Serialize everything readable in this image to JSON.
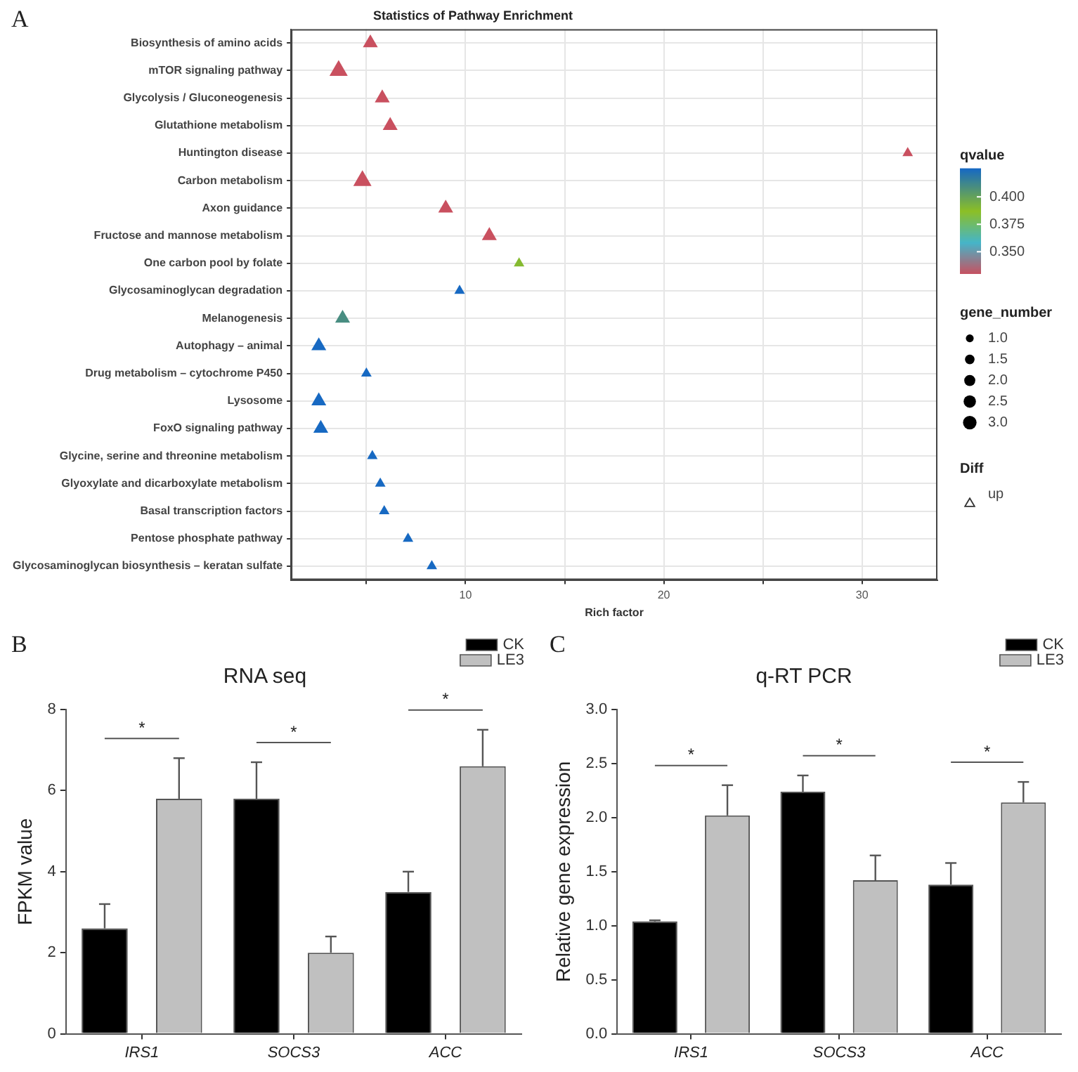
{
  "chart_data": [
    {
      "type": "scatter",
      "title": "Statistics of Pathway Enrichment",
      "xlabel": "Rich factor",
      "orientation": "horizontal",
      "marker": "triangle",
      "grid": true,
      "legend": "right",
      "legend_title": "Diff",
      "clabel": "qvalue",
      "categories": [
        "Biosynthesis of amino acids",
        "mTOR signaling pathway",
        "Glycolysis / Gluconeogenesis",
        "Glutathione metabolism",
        "Huntington disease",
        "Carbon metabolism",
        "Axon guidance",
        "Fructose and mannose metabolism",
        "One carbon pool by folate",
        "Glycosaminoglycan degradation",
        "Melanogenesis",
        "Autophagy – animal",
        "Drug metabolism – cytochrome P450",
        "Lysosome",
        "FoxO signaling pathway",
        "Glycine, serine and threonine metabolism",
        "Glyoxylate and dicarboxylate metabolism",
        "Basal transcription factors",
        "Pentose phosphate pathway",
        "Glycosaminoglycan biosynthesis – keratan sulfate"
      ],
      "xlim": [
        1.2,
        33.8
      ],
      "xticks": [
        {
          "value": 5,
          "label": null
        },
        10,
        {
          "value": 15,
          "label": null
        },
        20,
        {
          "value": 25,
          "label": null
        },
        30
      ],
      "clim": [
        0.33,
        0.426
      ],
      "cticks": [
        {
          "value": 0.35,
          "label": "0.350"
        },
        {
          "value": 0.375,
          "label": "0.375"
        },
        {
          "value": 0.4,
          "label": "0.400"
        }
      ],
      "size_legend": [
        {
          "value": 1,
          "label": "1.0"
        },
        {
          "value": 1.5,
          "label": "1.5"
        },
        {
          "value": 2,
          "label": "2.0"
        },
        {
          "value": 2.5,
          "label": "2.5"
        },
        {
          "value": 3,
          "label": "3.0"
        }
      ],
      "series": [
        {
          "name": "up",
          "values": [
            5.2,
            3.6,
            5.8,
            6.2,
            32.3,
            4.8,
            9.0,
            11.2,
            12.7,
            9.7,
            3.8,
            2.6,
            5.0,
            2.6,
            2.7,
            5.3,
            5.7,
            5.9,
            7.1,
            8.3
          ],
          "cvalues": [
            0.33,
            0.33,
            0.33,
            0.33,
            0.33,
            0.33,
            0.33,
            0.33,
            0.39,
            0.426,
            0.41,
            0.426,
            0.426,
            0.426,
            0.426,
            0.426,
            0.426,
            0.426,
            0.426,
            0.426
          ],
          "sizes": [
            2,
            3,
            2,
            2,
            1,
            3,
            2,
            2,
            1,
            1,
            2,
            2,
            1,
            2,
            2,
            1,
            1,
            1,
            1,
            1
          ]
        }
      ],
      "annotations": [
        "A",
        "gene_number"
      ]
    },
    {
      "type": "bar",
      "title": "RNA seq",
      "ylabel": "FPKM value",
      "categories": [
        "IRS1",
        "SOCS3",
        "ACC"
      ],
      "ylim": [
        0,
        8
      ],
      "yticks": [
        0,
        2,
        4,
        6,
        8
      ],
      "legend": "top right",
      "series": [
        {
          "name": "CK",
          "color": "#000000",
          "values": [
            2.6,
            5.8,
            3.5
          ],
          "errors": [
            [
              2.6,
              3.2
            ],
            [
              5.8,
              6.7
            ],
            [
              3.5,
              4.0
            ]
          ]
        },
        {
          "name": "LE3",
          "color": "#c0c0c0",
          "values": [
            5.8,
            2.0,
            6.6
          ],
          "errors": [
            [
              5.8,
              6.8
            ],
            [
              2.0,
              2.4
            ],
            [
              6.6,
              7.5
            ]
          ]
        }
      ],
      "annotations": [
        "B",
        "*",
        "*",
        "*"
      ]
    },
    {
      "type": "bar",
      "title": "q-RT PCR",
      "ylabel": "Relative gene expression",
      "categories": [
        "IRS1",
        "SOCS3",
        "ACC"
      ],
      "ylim": [
        0,
        3
      ],
      "yticks": [
        {
          "value": 0,
          "label": "0.0"
        },
        {
          "value": 0.5,
          "label": "0.5"
        },
        {
          "value": 1,
          "label": "1.0"
        },
        {
          "value": 1.5,
          "label": "1.5"
        },
        {
          "value": 2,
          "label": "2.0"
        },
        {
          "value": 2.5,
          "label": "2.5"
        },
        {
          "value": 3,
          "label": "3.0"
        }
      ],
      "legend": "top right",
      "series": [
        {
          "name": "CK",
          "color": "#000000",
          "values": [
            1.04,
            2.24,
            1.38
          ],
          "errors": [
            [
              1.04,
              1.05
            ],
            [
              2.24,
              2.39
            ],
            [
              1.38,
              1.58
            ]
          ]
        },
        {
          "name": "LE3",
          "color": "#c0c0c0",
          "values": [
            2.02,
            1.42,
            2.14
          ],
          "errors": [
            [
              2.02,
              2.3
            ],
            [
              1.42,
              1.65
            ],
            [
              2.14,
              2.33
            ]
          ]
        }
      ],
      "annotations": [
        "C",
        "*",
        "*",
        "*"
      ]
    }
  ]
}
